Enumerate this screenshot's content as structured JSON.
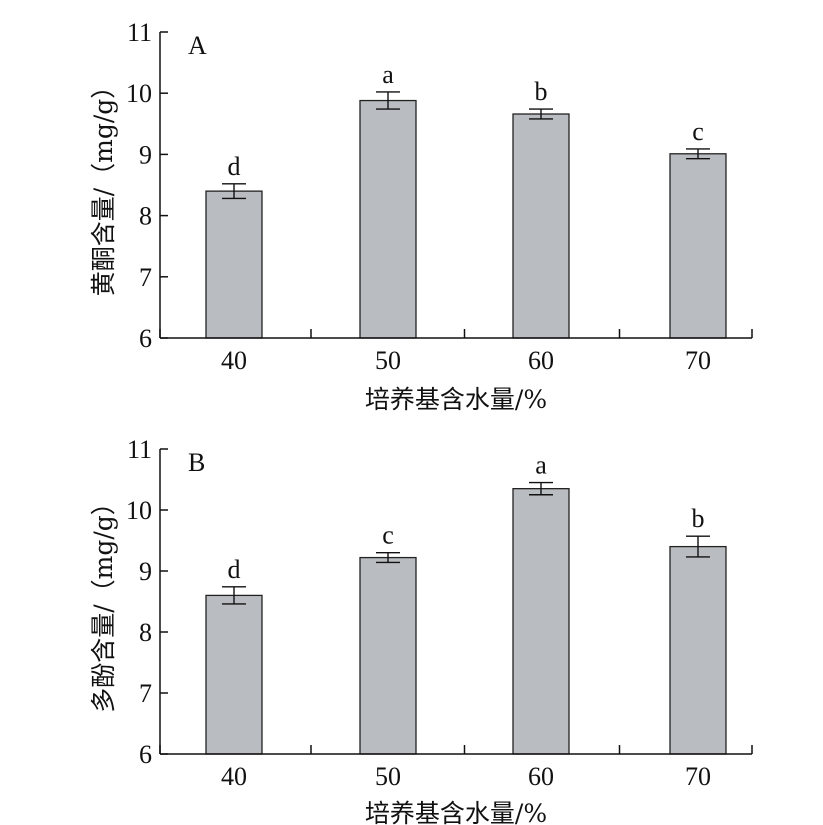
{
  "chart_data": [
    {
      "type": "bar",
      "panel_label": "A",
      "categories": [
        "40",
        "50",
        "60",
        "70"
      ],
      "values": [
        8.4,
        9.88,
        9.66,
        9.01
      ],
      "errors": [
        0.12,
        0.14,
        0.08,
        0.08
      ],
      "significance": [
        "d",
        "a",
        "b",
        "c"
      ],
      "xlabel": "培养基含水量/%",
      "ylabel": "黄酮含量/（mg/g）",
      "ylim": [
        6,
        11
      ],
      "yticks": [
        6,
        7,
        8,
        9,
        10,
        11
      ],
      "bar_color": "#b9bcc0",
      "grid": false
    },
    {
      "type": "bar",
      "panel_label": "B",
      "categories": [
        "40",
        "50",
        "60",
        "70"
      ],
      "values": [
        8.6,
        9.22,
        10.35,
        9.4
      ],
      "errors": [
        0.14,
        0.08,
        0.1,
        0.17
      ],
      "significance": [
        "d",
        "c",
        "a",
        "b"
      ],
      "xlabel": "培养基含水量/%",
      "ylabel": "多酚含量/（mg/g）",
      "ylim": [
        6,
        11
      ],
      "yticks": [
        6,
        7,
        8,
        9,
        10,
        11
      ],
      "bar_color": "#b9bcc0",
      "grid": false
    }
  ]
}
